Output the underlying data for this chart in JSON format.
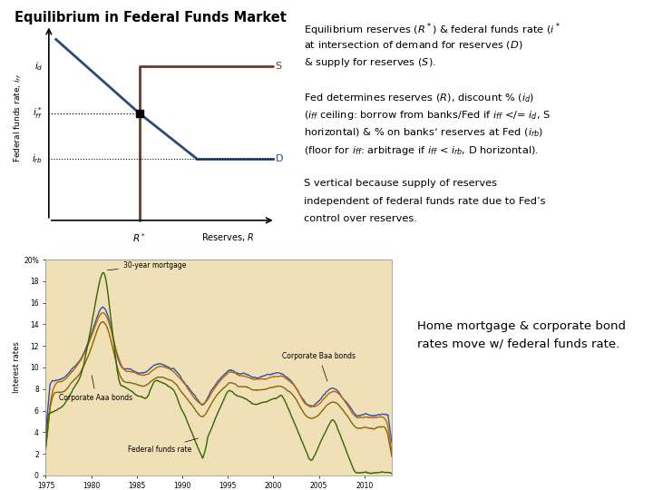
{
  "title": "Equilibrium in Federal Funds Market",
  "bg_color": "#ffffff",
  "chart_bg": "#ffffff",
  "bottom_bg": "#f0e0b8",
  "supply_color": "#6B3A2A",
  "demand_color": "#2A4A7A",
  "text_color": "#000000",
  "bottom_right_text": "Home mortgage & corporate bond\nrates move w/ federal funds rate.",
  "ylabel": "Federal funds rate, i",
  "xlabel": "Reserves, R",
  "right_text_lines": [
    "Equilibrium reserves ($R^*$) & federal funds rate ($i^*$",
    "at intersection of demand for reserves ($D$)",
    "& supply for reserves ($S$).",
    "",
    "Fed determines reserves ($R$), discount % ($i_d$)",
    "($i_{ff}$ ceiling: borrow from banks/Fed if $i_{ff}$ </= $i_d$, S",
    "horizontal) & % on banks’ reserves at Fed ($i_{rb}$)",
    "(floor for $i_{ff}$: arbitrage if $i_{ff}$ < $i_{rb}$, D horizontal).",
    "",
    "S vertical because supply of reserves",
    "independent of federal funds rate due to Fed’s",
    "control over reserves."
  ],
  "mort_color": "#3355AA",
  "baa_color": "#BB6600",
  "aaa_color": "#886600",
  "ff_color": "#336600",
  "i_d": 7.5,
  "i_rb": 3.0,
  "i_ff": 5.2,
  "R_star": 3.8
}
